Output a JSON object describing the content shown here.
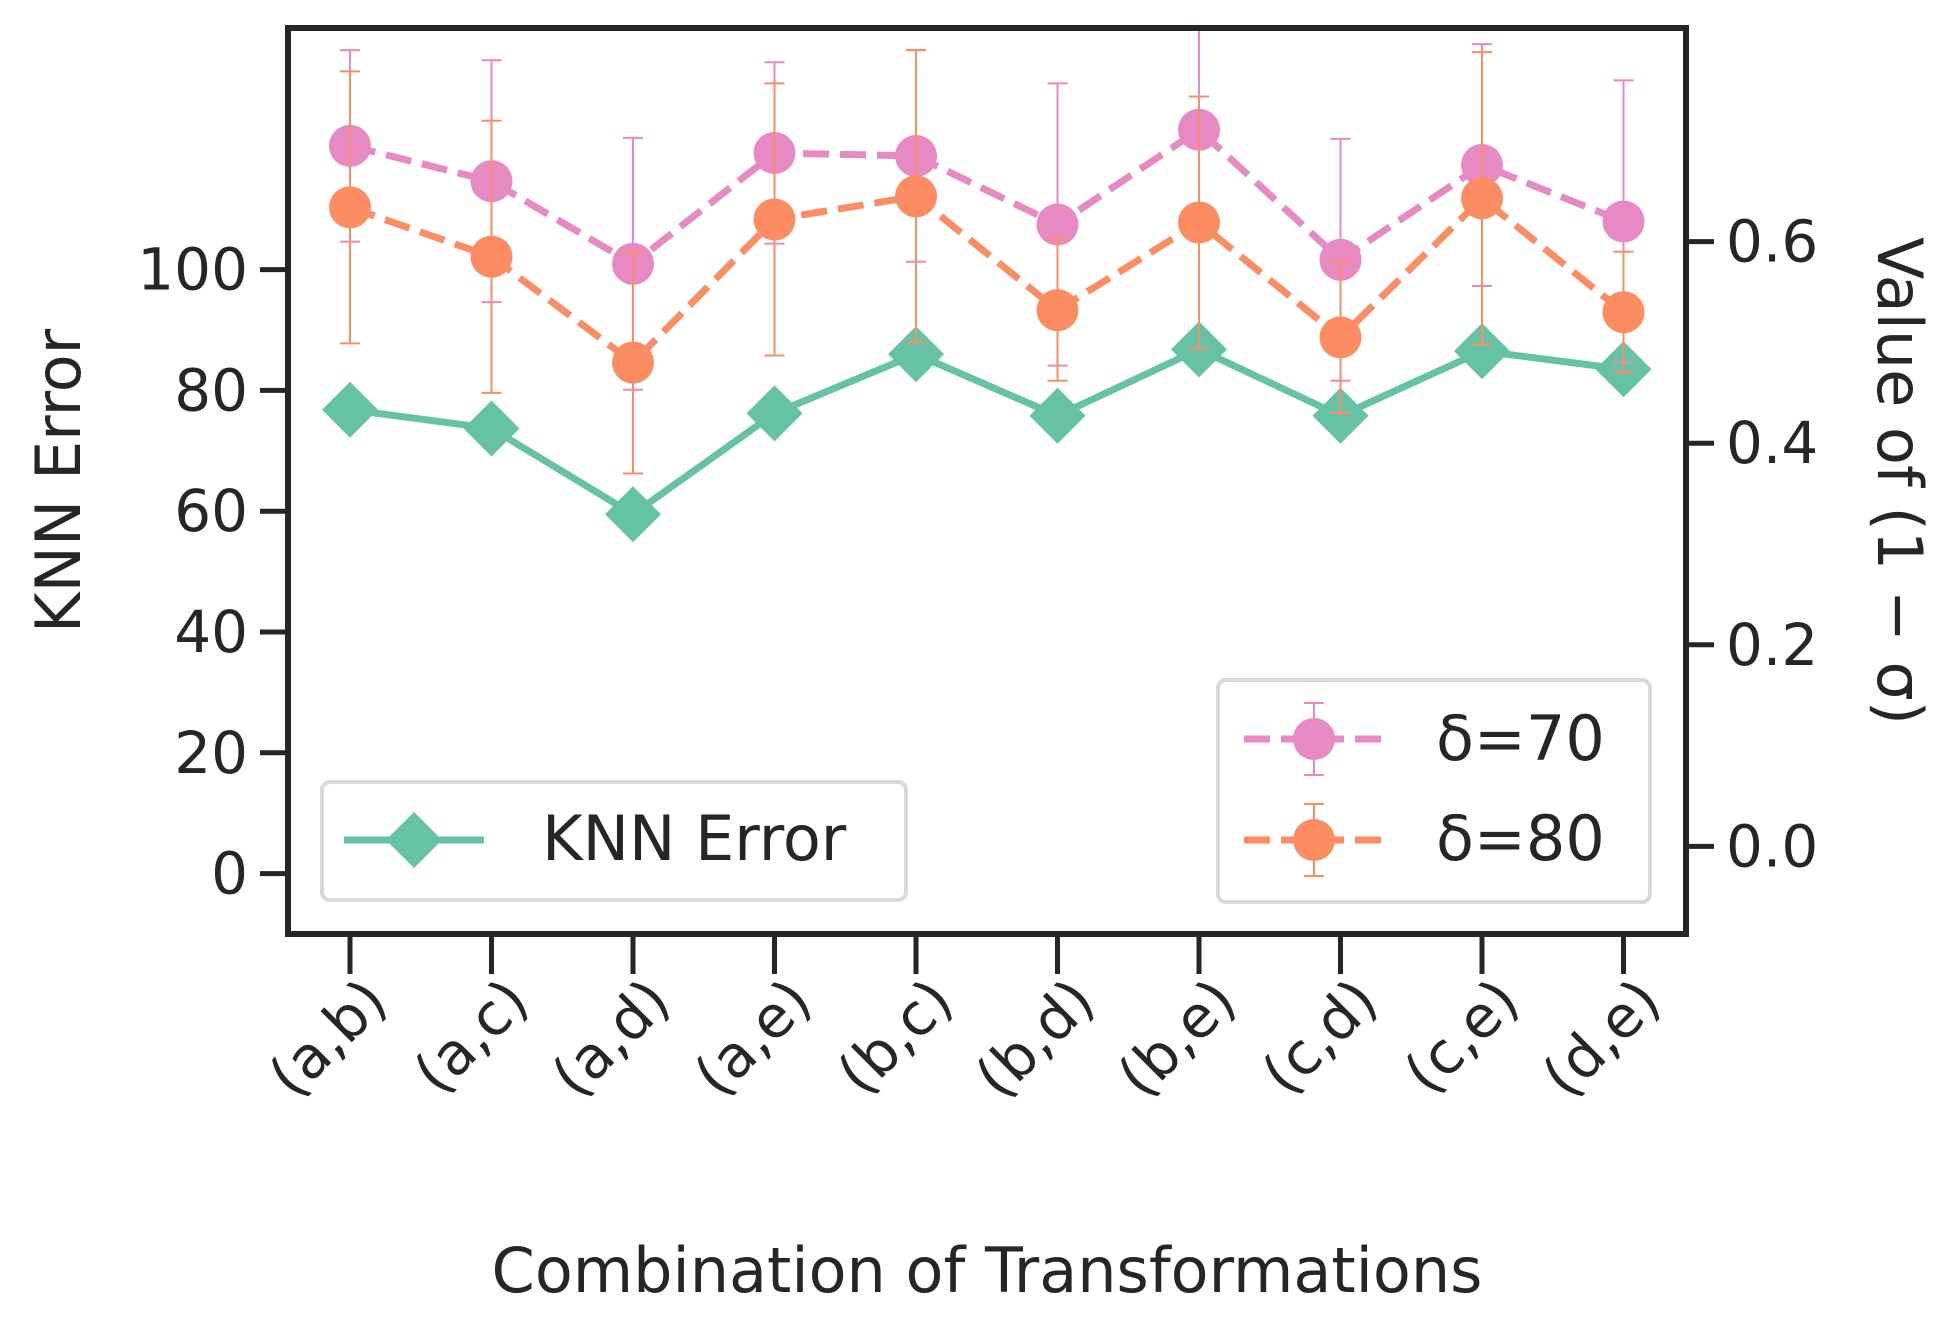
{
  "chart_data": {
    "type": "line",
    "title": "",
    "xlabel": "Combination of Transformations",
    "ylabel_left": "KNN Error",
    "ylabel_right": "Value of (1 − σ)",
    "categories": [
      "(a,b)",
      "(a,c)",
      "(a,d)",
      "(a,e)",
      "(b,c)",
      "(b,d)",
      "(b,e)",
      "(c,d)",
      "(c,e)",
      "(d,e)"
    ],
    "ylim_left": [
      -10,
      140
    ],
    "ylim_right": [
      -0.087,
      0.812
    ],
    "yticks_left": [
      "0",
      "20",
      "40",
      "60",
      "80",
      "100"
    ],
    "yticks_left_values": [
      0,
      20,
      40,
      60,
      80,
      100
    ],
    "yticks_right": [
      "0.0",
      "0.2",
      "0.4",
      "0.6"
    ],
    "yticks_right_values": [
      0.0,
      0.2,
      0.4,
      0.6
    ],
    "series": [
      {
        "name": "KNN Error",
        "axis": "left",
        "color": "#66c2a5",
        "marker": "diamond",
        "linestyle": "solid",
        "values": [
          76.8,
          73.7,
          59.5,
          76.2,
          86.0,
          75.8,
          86.8,
          75.8,
          86.5,
          83.5
        ]
      },
      {
        "name": "δ=70",
        "axis": "right",
        "color": "#e78ac3",
        "marker": "circle",
        "linestyle": "dashed",
        "values": [
          0.695,
          0.66,
          0.578,
          0.688,
          0.685,
          0.617,
          0.711,
          0.582,
          0.676,
          0.62
        ],
        "errors": [
          0.095,
          0.12,
          0.125,
          0.09,
          0.105,
          0.14,
          0.11,
          0.12,
          0.12,
          0.14
        ]
      },
      {
        "name": "δ=80",
        "axis": "right",
        "color": "#fc8d62",
        "marker": "circle",
        "linestyle": "dashed",
        "values": [
          0.634,
          0.585,
          0.48,
          0.622,
          0.645,
          0.532,
          0.619,
          0.505,
          0.643,
          0.53
        ],
        "errors": [
          0.135,
          0.135,
          0.11,
          0.135,
          0.145,
          0.07,
          0.125,
          0.075,
          0.145,
          0.06
        ]
      }
    ],
    "legends": [
      {
        "position": "lower-left",
        "entries": [
          "KNN Error"
        ]
      },
      {
        "position": "lower-right",
        "entries": [
          "δ=70",
          "δ=80"
        ]
      }
    ]
  }
}
